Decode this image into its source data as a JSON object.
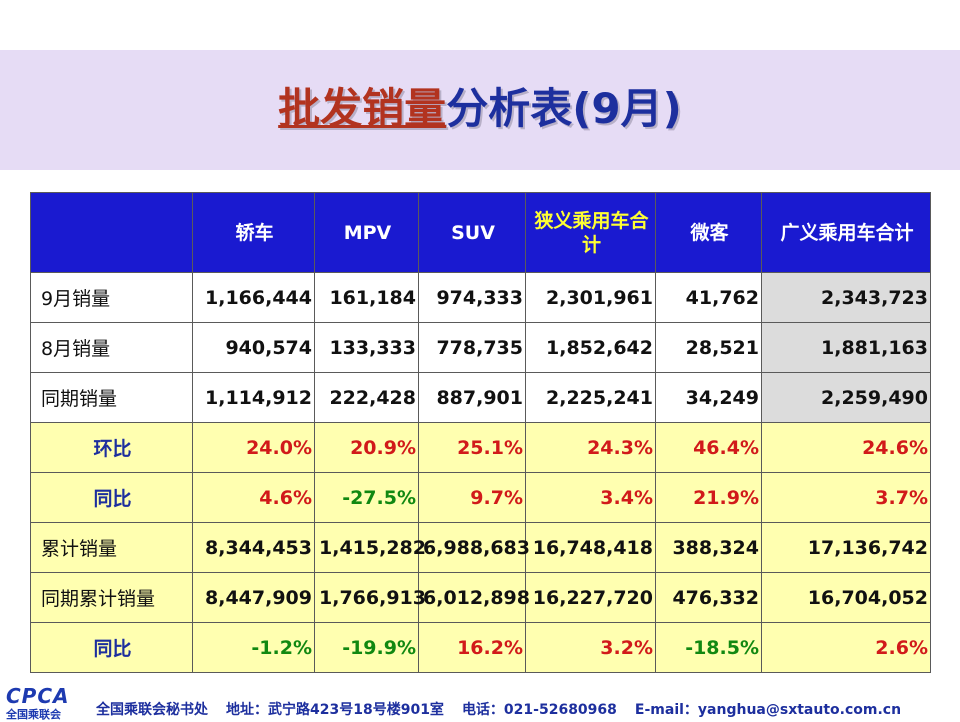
{
  "title": {
    "part1": "批发销量",
    "part2": "分析表(9月)"
  },
  "table": {
    "headers": [
      "",
      "轿车",
      "MPV",
      "SUV",
      "狭义乘用车合计",
      "微客",
      "广义乘用车合计"
    ],
    "rows": [
      {
        "label": "9月销量",
        "values": [
          "1,166,444",
          "161,184",
          "974,333",
          "2,301,961",
          "41,762",
          "2,343,723"
        ]
      },
      {
        "label": "8月销量",
        "values": [
          "940,574",
          "133,333",
          "778,735",
          "1,852,642",
          "28,521",
          "1,881,163"
        ]
      },
      {
        "label": "同期销量",
        "values": [
          "1,114,912",
          "222,428",
          "887,901",
          "2,225,241",
          "34,249",
          "2,259,490"
        ]
      },
      {
        "label": "环比",
        "values": [
          "24.0%",
          "20.9%",
          "25.1%",
          "24.3%",
          "46.4%",
          "24.6%"
        ]
      },
      {
        "label": "同比",
        "values": [
          "4.6%",
          "-27.5%",
          "9.7%",
          "3.4%",
          "21.9%",
          "3.7%"
        ]
      },
      {
        "label": "累计销量",
        "values": [
          "8,344,453",
          "1,415,282",
          "6,988,683",
          "16,748,418",
          "388,324",
          "17,136,742"
        ]
      },
      {
        "label": "同期累计销量",
        "values": [
          "8,447,909",
          "1,766,913",
          "6,012,898",
          "16,227,720",
          "476,332",
          "16,704,052"
        ]
      },
      {
        "label": "同比",
        "values": [
          "-1.2%",
          "-19.9%",
          "16.2%",
          "3.2%",
          "-18.5%",
          "2.6%"
        ]
      }
    ]
  },
  "footer": {
    "logo_text": "CPCA",
    "logo_sub": "全国乘联会",
    "org": "全国乘联会秘书处",
    "address": "地址：武宁路423号18号楼901室",
    "phone": "电话：021-52680968",
    "email": "E-mail：yanghua@sxtauto.com.cn"
  },
  "colors": {
    "header_bg": "#1a1ad0",
    "header_highlight": "#ffff33",
    "yellow_row": "#ffffb0",
    "total_col": "#dcdcdc",
    "title_red": "#b2331f",
    "title_blue": "#1d2f9e",
    "positive": "#d11a1a",
    "negative": "#118811"
  }
}
